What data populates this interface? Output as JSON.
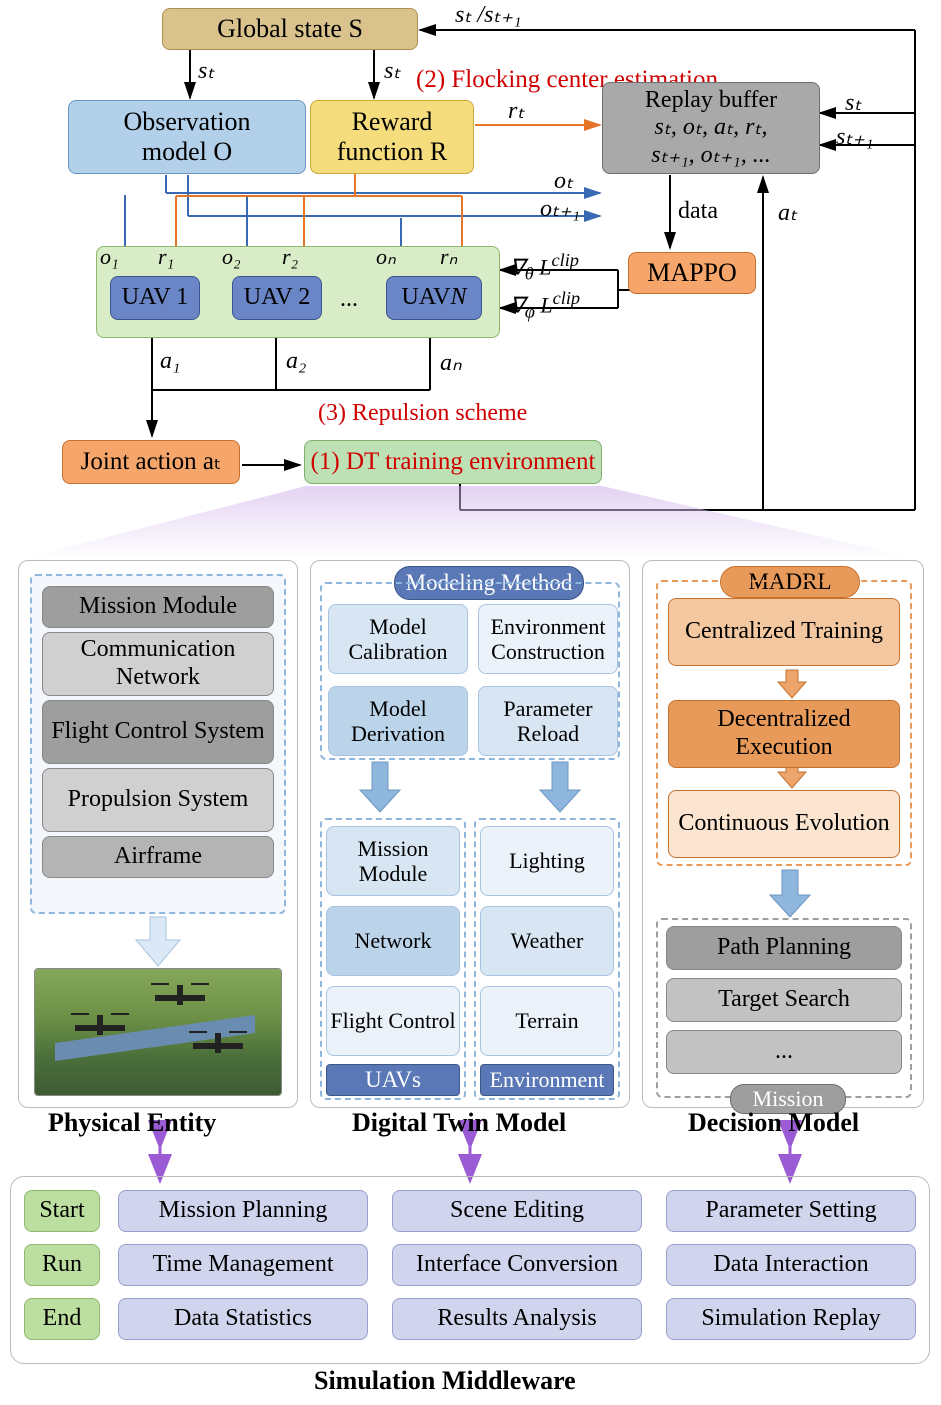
{
  "top": {
    "global_state": "Global state S",
    "obs_model_l1": "Observation",
    "obs_model_l2": "model O",
    "reward_l1": "Reward",
    "reward_l2": "function R",
    "replay_l1": "Replay buffer",
    "replay_l2": "sₜ, oₜ, aₜ, rₜ,",
    "replay_l3": "sₜ₊₁, oₜ₊₁, ...",
    "uav1": "UAV 1",
    "uav2": "UAV 2",
    "uavN": "UAV N",
    "dots": "...",
    "mappo": "MAPPO",
    "joint_action": "Joint action aₜ",
    "dt_env": "(1) DT training environment",
    "labels": {
      "st_top": "sₜ /sₜ₊₁",
      "st1": "sₜ",
      "st2": "sₜ",
      "st_right1": "sₜ",
      "st_right2": "sₜ₊₁",
      "flocking": "(2) Flocking center estimation",
      "rt": "rₜ",
      "ot": "oₜ",
      "ot1": "oₜ₊₁",
      "data": "data",
      "at_right": "aₜ",
      "o1": "o₁",
      "r1": "r₁",
      "o2": "o₂",
      "r2": "r₂",
      "oN": "oₙ",
      "rN": "rₙ",
      "grad1": "∇_θ L^clip",
      "grad2": "∇_φ L^clip",
      "a1": "a₁",
      "a2": "a₂",
      "aN": "aₙ",
      "repulsion": "(3) Repulsion scheme"
    }
  },
  "colors": {
    "tan_fill": "#d9c28c",
    "tan_border": "#b09050",
    "lblue_fill": "#b3d0ea",
    "lblue_border": "#6c96c0",
    "yellow_fill": "#f5dd7d",
    "yellow_border": "#caa83a",
    "gray_fill": "#a9a9a9",
    "gray_border": "#6e6e6e",
    "green_fill": "#d9ecc8",
    "green_border": "#8fb86c",
    "dblue_fill": "#6a86c6",
    "dblue_border": "#3f5590",
    "orange_fill": "#f6a66a",
    "orange_border": "#c6722e",
    "bgreen_fill": "#bde0b5",
    "bgreen_border": "#7fb070",
    "purple": "#9b5bd4",
    "steel_fill": "#5a77b6",
    "steel_border": "#3c5688",
    "ltblue": "#d8e6f3",
    "mdblue": "#bcd4ea",
    "vltblue": "#ebf2fa",
    "p_orange": "#f3c8a0",
    "p_dorange": "#e89a5a",
    "p_lorange": "#fbe4d0",
    "d_gray": "#9e9e9e",
    "m_gray": "#c2c2c2",
    "sim_green": "#bcdea0",
    "sim_lilac": "#d0d4ec"
  },
  "panels": {
    "physical": {
      "title": "Physical Entity",
      "items": [
        "Mission Module",
        "Communication Network",
        "Flight Control System",
        "Propulsion System",
        "Airframe"
      ]
    },
    "dtm": {
      "title": "Digital Twin Model",
      "method_header": "Modeling Method",
      "method_items": [
        "Model Calibration",
        "Environment Construction",
        "Model Derivation",
        "Parameter Reload"
      ],
      "uavs_header": "UAVs",
      "env_header": "Environment",
      "uav_items": [
        "Mission Module",
        "Network",
        "Flight Control"
      ],
      "env_items": [
        "Lighting",
        "Weather",
        "Terrain"
      ]
    },
    "decision": {
      "title": "Decision Model",
      "madrl_header": "MADRL",
      "madrl_items": [
        "Centralized Training",
        "Decentralized Execution",
        "Continuous Evolution"
      ],
      "mission_header": "Mission",
      "mission_items": [
        "Path Planning",
        "Target Search",
        "..."
      ]
    }
  },
  "middleware": {
    "title": "Simulation Middleware",
    "left": [
      "Start",
      "Run",
      "End"
    ],
    "rows": [
      [
        "Mission Planning",
        "Scene Editing",
        "Parameter Setting"
      ],
      [
        "Time Management",
        "Interface Conversion",
        "Data Interaction"
      ],
      [
        "Data Statistics",
        "Results Analysis",
        "Simulation Replay"
      ]
    ]
  }
}
